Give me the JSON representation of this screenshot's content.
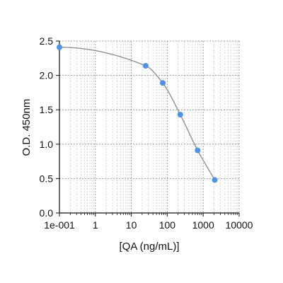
{
  "chart_data": {
    "type": "scatter",
    "title": "",
    "xlabel": "[QA (ng/mL)]",
    "ylabel": "O.D. 450nm",
    "x_scale": "log",
    "xlim": [
      0.1,
      10000
    ],
    "ylim": [
      0,
      2.5
    ],
    "x_tick_values": [
      0.1,
      1,
      10,
      100,
      1000,
      10000
    ],
    "x_tick_labels": [
      "1e-001",
      "1",
      "10",
      "100",
      "1000",
      "10000"
    ],
    "y_tick_values": [
      0,
      0.5,
      1,
      1.5,
      2,
      2.5
    ],
    "y_tick_labels": [
      "0.0",
      "0.5",
      "1.0",
      "1.5",
      "2.0",
      "2.5"
    ],
    "grid": true,
    "legend": "none",
    "series": [
      {
        "points": [
          {
            "x": 0.1,
            "y": 2.41
          },
          {
            "x": 25,
            "y": 2.14
          },
          {
            "x": 75,
            "y": 1.89
          },
          {
            "x": 230,
            "y": 1.43
          },
          {
            "x": 700,
            "y": 0.91
          },
          {
            "x": 2100,
            "y": 0.48
          }
        ],
        "marker_color": "#4f93e6",
        "fit_curve": true,
        "fit_color": "#8a8a8a"
      }
    ]
  }
}
